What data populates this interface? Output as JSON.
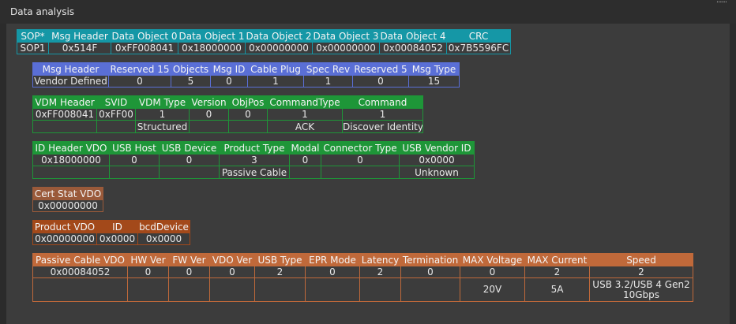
{
  "header": {
    "title": "Data analysis"
  },
  "tables": [
    {
      "color": "#1597a6",
      "columns": [
        "SOP*",
        "Msg Header",
        "Data Object 0",
        "Data Object 1",
        "Data Object 2",
        "Data Object 3",
        "Data Object 4",
        "CRC"
      ],
      "rows": [
        [
          "SOP1",
          "0x514F",
          "0xFF008041",
          "0x18000000",
          "0x00000000",
          "0x00000000",
          "0x00084052",
          "0x7B5596FC"
        ]
      ]
    },
    {
      "color": "#5a6fd6",
      "columns": [
        "Msg Header",
        "Reserved 15",
        "Objects",
        "Msg ID",
        "Cable Plug",
        "Spec Rev",
        "Reserved 5",
        "Msg Type"
      ],
      "rows": [
        [
          "Vendor Defined",
          "0",
          "5",
          "0",
          "1",
          "1",
          "0",
          "15"
        ]
      ]
    },
    {
      "color": "#1e9638",
      "columns": [
        "VDM Header",
        "SVID",
        "VDM Type",
        "Version",
        "ObjPos",
        "CommandType",
        "Command"
      ],
      "rows": [
        [
          "0xFF008041",
          "0xFF00",
          "1",
          "0",
          "0",
          "1",
          "1"
        ],
        [
          null,
          null,
          "Structured",
          null,
          null,
          "ACK",
          "Discover Identity"
        ]
      ]
    },
    {
      "color": "#1e9638",
      "columns": [
        "ID Header VDO",
        "USB Host",
        "USB Device",
        "Product Type",
        "Modal",
        "Connector Type",
        "USB Vendor ID"
      ],
      "rows": [
        [
          "0x18000000",
          "0",
          "0",
          "3",
          "0",
          "0",
          "0x0000"
        ],
        [
          null,
          null,
          null,
          "Passive Cable",
          null,
          null,
          "Unknown"
        ]
      ]
    },
    {
      "color": "#9a5a3a",
      "columns": [
        "Cert Stat VDO"
      ],
      "rows": [
        [
          "0x00000000"
        ]
      ]
    },
    {
      "color": "#a3491a",
      "columns": [
        "Product VDO",
        "ID",
        "bcdDevice"
      ],
      "rows": [
        [
          "0x00000000",
          "0x0000",
          "0x0000"
        ]
      ]
    },
    {
      "color": "#c0693a",
      "columns": [
        "Passive Cable VDO",
        "HW Ver",
        "FW Ver",
        "VDO Ver",
        "USB Type",
        "EPR Mode",
        "Latency",
        "Termination",
        "MAX Voltage",
        "MAX Current",
        "Speed"
      ],
      "rows": [
        [
          "0x00084052",
          "0",
          "0",
          "0",
          "2",
          "0",
          "2",
          "0",
          "0",
          "2",
          "2"
        ],
        [
          null,
          null,
          null,
          null,
          null,
          null,
          null,
          null,
          "20V",
          "5A",
          "USB 3.2/USB 4 Gen2 10Gbps"
        ]
      ]
    }
  ]
}
